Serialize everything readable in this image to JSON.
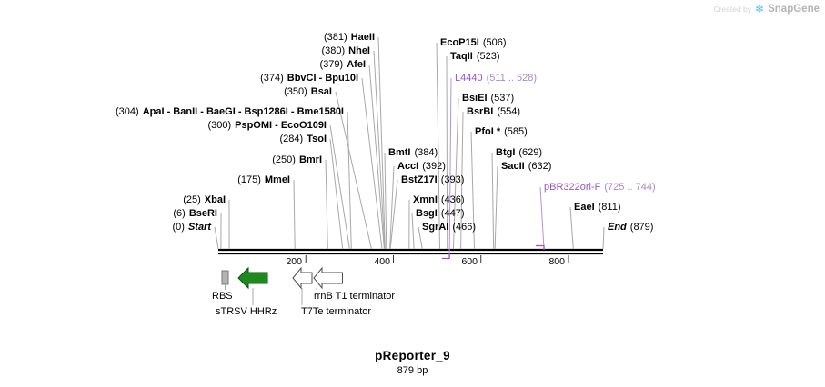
{
  "watermark": {
    "created_by": "Created by",
    "brand": "SnapGene"
  },
  "map": {
    "name": "pReporter_9",
    "length_label": "879 bp",
    "length_bp": 879,
    "axis_ticks": [
      "200",
      "400",
      "600",
      "800"
    ]
  },
  "colors": {
    "primer": "#9655c8",
    "primer_light": "#a787cf",
    "hammerhead_green": "#1d8a1d",
    "terminator_white": "#ffffff",
    "rbs_gray": "#b3b3b3",
    "brand_blue": "#59b8e8"
  },
  "labels": [
    {
      "pre": "(381)",
      "name": "HaeII",
      "post": "",
      "bp": 381,
      "kind": "enzyme"
    },
    {
      "pre": "(380)",
      "name": "NheI",
      "post": "",
      "bp": 380,
      "kind": "enzyme"
    },
    {
      "pre": "(379)",
      "name": "AfeI",
      "post": "",
      "bp": 379,
      "kind": "enzyme"
    },
    {
      "pre": "(374)",
      "name": "BbvCI - Bpu10I",
      "post": "",
      "bp": 374,
      "kind": "enzyme"
    },
    {
      "pre": "(350)",
      "name": "BsaI",
      "post": "",
      "bp": 350,
      "kind": "enzyme"
    },
    {
      "pre": "(304)",
      "name": "ApaI - BanII - BaeGI - Bsp1286I - Bme1580I",
      "post": "",
      "bp": 304,
      "kind": "enzyme"
    },
    {
      "pre": "(300)",
      "name": "PspOMI - EcoO109I",
      "post": "",
      "bp": 300,
      "kind": "enzyme"
    },
    {
      "pre": "(284)",
      "name": "TsoI",
      "post": "",
      "bp": 284,
      "kind": "enzyme"
    },
    {
      "pre": "(250)",
      "name": "BmrI",
      "post": "",
      "bp": 250,
      "kind": "enzyme"
    },
    {
      "pre": "(175)",
      "name": "MmeI",
      "post": "",
      "bp": 175,
      "kind": "enzyme"
    },
    {
      "pre": "(25)",
      "name": "XbaI",
      "post": "",
      "bp": 25,
      "kind": "enzyme"
    },
    {
      "pre": "(6)",
      "name": "BseRI",
      "post": "",
      "bp": 6,
      "kind": "enzyme"
    },
    {
      "pre": "(0)",
      "name": "Start",
      "post": "",
      "bp": 0,
      "kind": "boundary"
    },
    {
      "pre": "",
      "name": "BmtI",
      "post": "(384)",
      "bp": 384,
      "kind": "enzyme"
    },
    {
      "pre": "",
      "name": "AccI",
      "post": "(392)",
      "bp": 392,
      "kind": "enzyme"
    },
    {
      "pre": "",
      "name": "BstZ17I",
      "post": "(393)",
      "bp": 393,
      "kind": "enzyme"
    },
    {
      "pre": "",
      "name": "XmnI",
      "post": "(436)",
      "bp": 436,
      "kind": "enzyme"
    },
    {
      "pre": "",
      "name": "BsgI",
      "post": "(447)",
      "bp": 447,
      "kind": "enzyme"
    },
    {
      "pre": "",
      "name": "SgrAI",
      "post": "(466)",
      "bp": 466,
      "kind": "enzyme"
    },
    {
      "pre": "",
      "name": "EcoP15I",
      "post": "(506)",
      "bp": 506,
      "kind": "enzyme"
    },
    {
      "pre": "",
      "name": "TaqII",
      "post": "(523)",
      "bp": 523,
      "kind": "enzyme"
    },
    {
      "pre": "",
      "name": "L4440",
      "post": "(511 .. 528)",
      "bp": 528,
      "start": 511,
      "end": 528,
      "strand": "bottom",
      "kind": "primer"
    },
    {
      "pre": "",
      "name": "BsiEI",
      "post": "(537)",
      "bp": 537,
      "kind": "enzyme"
    },
    {
      "pre": "",
      "name": "BsrBI",
      "post": "(554)",
      "bp": 554,
      "kind": "enzyme"
    },
    {
      "pre": "",
      "name": "PfoI *",
      "post": "(585)",
      "bp": 585,
      "kind": "enzyme"
    },
    {
      "pre": "",
      "name": "BtgI",
      "post": "(629)",
      "bp": 629,
      "kind": "enzyme"
    },
    {
      "pre": "",
      "name": "SacII",
      "post": "(632)",
      "bp": 632,
      "kind": "enzyme"
    },
    {
      "pre": "",
      "name": "pBR322ori-F",
      "post": "(725 .. 744)",
      "bp": 744,
      "start": 725,
      "end": 744,
      "strand": "top",
      "kind": "primer"
    },
    {
      "pre": "",
      "name": "EaeI",
      "post": "(811)",
      "bp": 811,
      "kind": "enzyme"
    },
    {
      "pre": "",
      "name": "End",
      "post": "(879)",
      "bp": 879,
      "kind": "boundary"
    }
  ],
  "features": [
    {
      "label": "RBS",
      "color": "#b3b3b3"
    },
    {
      "label": "sTRSV HHRz",
      "color": "#1d8a1d"
    },
    {
      "label": "T7Te terminator",
      "color": "#ffffff"
    },
    {
      "label": "rrnB T1 terminator",
      "color": "#ffffff"
    }
  ]
}
